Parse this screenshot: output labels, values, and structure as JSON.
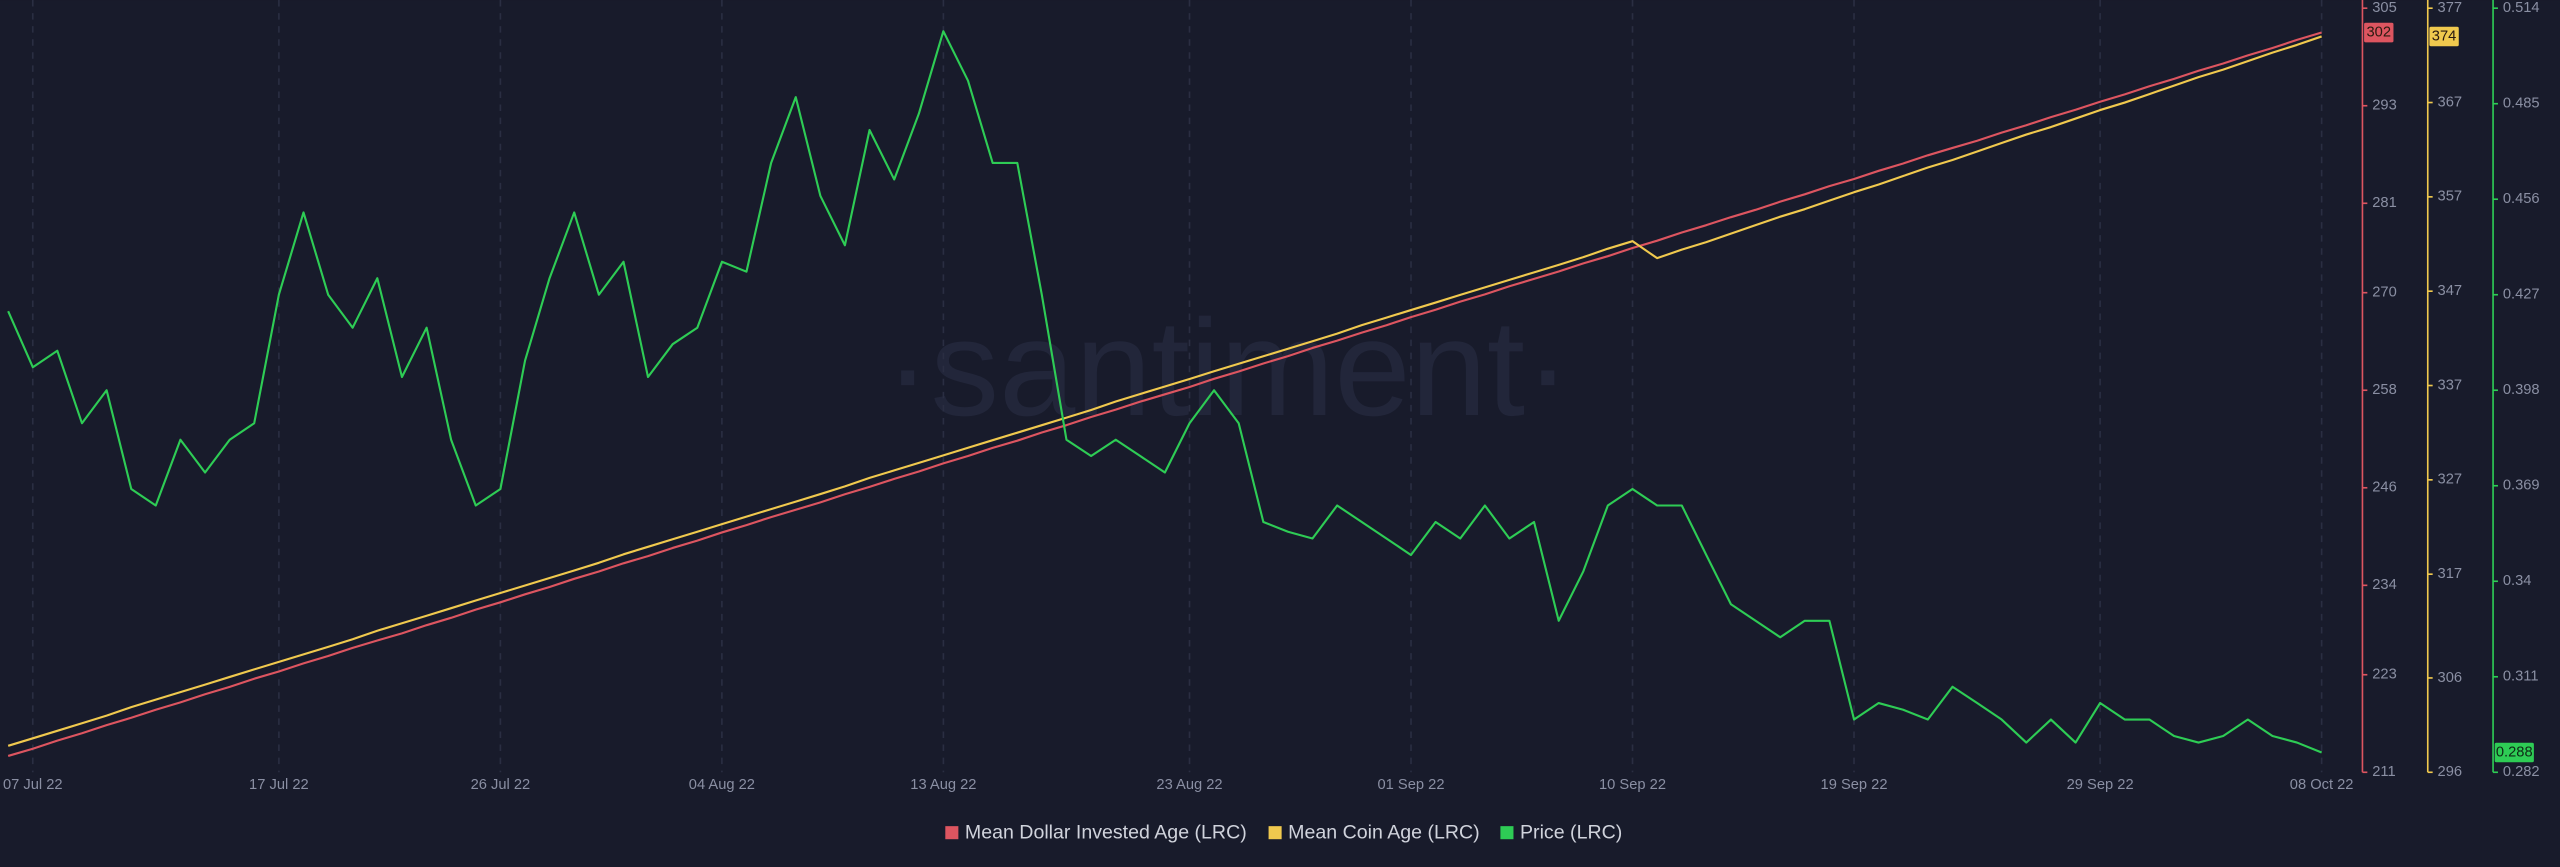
{
  "chart_data": {
    "type": "line",
    "watermark": "·santiment·",
    "x": [
      "2022-07-06",
      "2022-07-07",
      "2022-07-08",
      "2022-07-09",
      "2022-07-10",
      "2022-07-11",
      "2022-07-12",
      "2022-07-13",
      "2022-07-14",
      "2022-07-15",
      "2022-07-16",
      "2022-07-17",
      "2022-07-18",
      "2022-07-19",
      "2022-07-20",
      "2022-07-21",
      "2022-07-22",
      "2022-07-23",
      "2022-07-24",
      "2022-07-25",
      "2022-07-26",
      "2022-07-27",
      "2022-07-28",
      "2022-07-29",
      "2022-07-30",
      "2022-07-31",
      "2022-08-01",
      "2022-08-02",
      "2022-08-03",
      "2022-08-04",
      "2022-08-05",
      "2022-08-06",
      "2022-08-07",
      "2022-08-08",
      "2022-08-09",
      "2022-08-10",
      "2022-08-11",
      "2022-08-12",
      "2022-08-13",
      "2022-08-14",
      "2022-08-15",
      "2022-08-16",
      "2022-08-17",
      "2022-08-18",
      "2022-08-19",
      "2022-08-20",
      "2022-08-21",
      "2022-08-22",
      "2022-08-23",
      "2022-08-24",
      "2022-08-25",
      "2022-08-26",
      "2022-08-27",
      "2022-08-28",
      "2022-08-29",
      "2022-08-30",
      "2022-08-31",
      "2022-09-01",
      "2022-09-02",
      "2022-09-03",
      "2022-09-04",
      "2022-09-05",
      "2022-09-06",
      "2022-09-07",
      "2022-09-08",
      "2022-09-09",
      "2022-09-10",
      "2022-09-11",
      "2022-09-12",
      "2022-09-13",
      "2022-09-14",
      "2022-09-15",
      "2022-09-16",
      "2022-09-17",
      "2022-09-18",
      "2022-09-19",
      "2022-09-20",
      "2022-09-21",
      "2022-09-22",
      "2022-09-23",
      "2022-09-24",
      "2022-09-25",
      "2022-09-26",
      "2022-09-27",
      "2022-09-28",
      "2022-09-29",
      "2022-09-30",
      "2022-10-01",
      "2022-10-02",
      "2022-10-03",
      "2022-10-04",
      "2022-10-05",
      "2022-10-06",
      "2022-10-07",
      "2022-10-08"
    ],
    "xlim": [
      "2022-07-06",
      "2022-10-08"
    ],
    "xticks": [
      {
        "value": "2022-07-07",
        "label": "07 Jul 22"
      },
      {
        "value": "2022-07-17",
        "label": "17 Jul 22"
      },
      {
        "value": "2022-07-26",
        "label": "26 Jul 22"
      },
      {
        "value": "2022-08-04",
        "label": "04 Aug 22"
      },
      {
        "value": "2022-08-13",
        "label": "13 Aug 22"
      },
      {
        "value": "2022-08-23",
        "label": "23 Aug 22"
      },
      {
        "value": "2022-09-01",
        "label": "01 Sep 22"
      },
      {
        "value": "2022-09-10",
        "label": "10 Sep 22"
      },
      {
        "value": "2022-09-19",
        "label": "19 Sep 22"
      },
      {
        "value": "2022-09-29",
        "label": "29 Sep 22"
      },
      {
        "value": "2022-10-08",
        "label": "08 Oct 22"
      }
    ],
    "ylim": [
      211,
      305
    ],
    "yticks": [
      211,
      223,
      234,
      246,
      258,
      270,
      281,
      293,
      305
    ],
    "y2lim": [
      296,
      377
    ],
    "y2ticks": [
      296,
      306,
      317,
      327,
      337,
      347,
      357,
      367,
      377
    ],
    "y3lim": [
      0.282,
      0.514
    ],
    "y3ticks": [
      0.282,
      0.311,
      0.34,
      0.369,
      0.398,
      0.427,
      0.456,
      0.485,
      0.514
    ],
    "series": [
      {
        "name": "Mean Dollar Invested Age (LRC)",
        "color": "#dd5560",
        "axis": "y",
        "values": [
          213.0,
          213.9,
          214.9,
          215.8,
          216.8,
          217.7,
          218.7,
          219.6,
          220.6,
          221.5,
          222.5,
          223.4,
          224.4,
          225.3,
          226.3,
          227.2,
          228.1,
          229.1,
          230.0,
          231.0,
          231.9,
          232.9,
          233.8,
          234.8,
          235.7,
          236.7,
          237.6,
          238.6,
          239.5,
          240.5,
          241.4,
          242.4,
          243.3,
          244.2,
          245.2,
          246.1,
          247.1,
          248.0,
          249.0,
          249.9,
          250.9,
          251.8,
          252.8,
          253.7,
          254.7,
          255.6,
          256.6,
          257.5,
          258.4,
          259.4,
          260.3,
          261.3,
          262.2,
          263.2,
          264.1,
          265.1,
          266.0,
          267.0,
          267.9,
          268.9,
          269.8,
          270.8,
          271.7,
          272.6,
          273.6,
          274.5,
          275.5,
          276.4,
          277.4,
          278.3,
          279.3,
          280.2,
          281.2,
          282.1,
          283.1,
          284.0,
          285.0,
          285.9,
          286.9,
          287.8,
          288.7,
          289.7,
          290.6,
          291.6,
          292.5,
          293.5,
          294.4,
          295.4,
          296.3,
          297.3,
          298.2,
          299.2,
          300.1,
          301.1,
          302.0
        ]
      },
      {
        "name": "Mean Coin Age (LRC)",
        "color": "#f0c94e",
        "axis": "y2",
        "values": [
          298.8,
          299.6,
          300.4,
          301.2,
          302.0,
          302.9,
          303.7,
          304.5,
          305.3,
          306.1,
          306.9,
          307.7,
          308.5,
          309.3,
          310.1,
          311.0,
          311.8,
          312.6,
          313.4,
          314.2,
          315.0,
          315.8,
          316.6,
          317.4,
          318.2,
          319.1,
          319.9,
          320.7,
          321.5,
          322.3,
          323.1,
          323.9,
          324.7,
          325.5,
          326.3,
          327.2,
          328.0,
          328.8,
          329.6,
          330.4,
          331.2,
          332.0,
          332.8,
          333.6,
          334.4,
          335.3,
          336.1,
          336.9,
          337.7,
          338.5,
          339.3,
          340.1,
          340.9,
          341.7,
          342.5,
          343.4,
          344.2,
          345.0,
          345.8,
          346.6,
          347.4,
          348.2,
          349.0,
          349.8,
          350.6,
          351.5,
          352.3,
          350.5,
          351.4,
          352.2,
          353.1,
          354.0,
          354.9,
          355.7,
          356.6,
          357.5,
          358.3,
          359.2,
          360.1,
          360.9,
          361.8,
          362.7,
          363.6,
          364.4,
          365.3,
          366.2,
          367.0,
          367.9,
          368.8,
          369.7,
          370.5,
          371.4,
          372.3,
          373.1,
          374.0
        ]
      },
      {
        "name": "Price (LRC)",
        "color": "#2ecc55",
        "axis": "y3",
        "values": [
          0.422,
          0.405,
          0.41,
          0.388,
          0.398,
          0.368,
          0.363,
          0.383,
          0.373,
          0.383,
          0.388,
          0.427,
          0.452,
          0.427,
          0.417,
          0.432,
          0.402,
          0.417,
          0.383,
          0.363,
          0.368,
          0.407,
          0.432,
          0.452,
          0.427,
          0.437,
          0.402,
          0.412,
          0.417,
          0.437,
          0.434,
          0.467,
          0.487,
          0.457,
          0.442,
          0.477,
          0.462,
          0.482,
          0.507,
          0.492,
          0.467,
          0.467,
          0.427,
          0.383,
          0.378,
          0.383,
          0.378,
          0.373,
          0.388,
          0.398,
          0.388,
          0.358,
          0.355,
          0.353,
          0.363,
          0.358,
          0.353,
          0.348,
          0.358,
          0.353,
          0.363,
          0.353,
          0.358,
          0.328,
          0.343,
          0.363,
          0.368,
          0.363,
          0.363,
          0.348,
          0.333,
          0.328,
          0.323,
          0.328,
          0.328,
          0.298,
          0.303,
          0.301,
          0.298,
          0.308,
          0.303,
          0.298,
          0.291,
          0.298,
          0.291,
          0.303,
          0.298,
          0.298,
          0.293,
          0.291,
          0.293,
          0.298,
          0.293,
          0.291,
          0.288
        ]
      }
    ]
  }
}
